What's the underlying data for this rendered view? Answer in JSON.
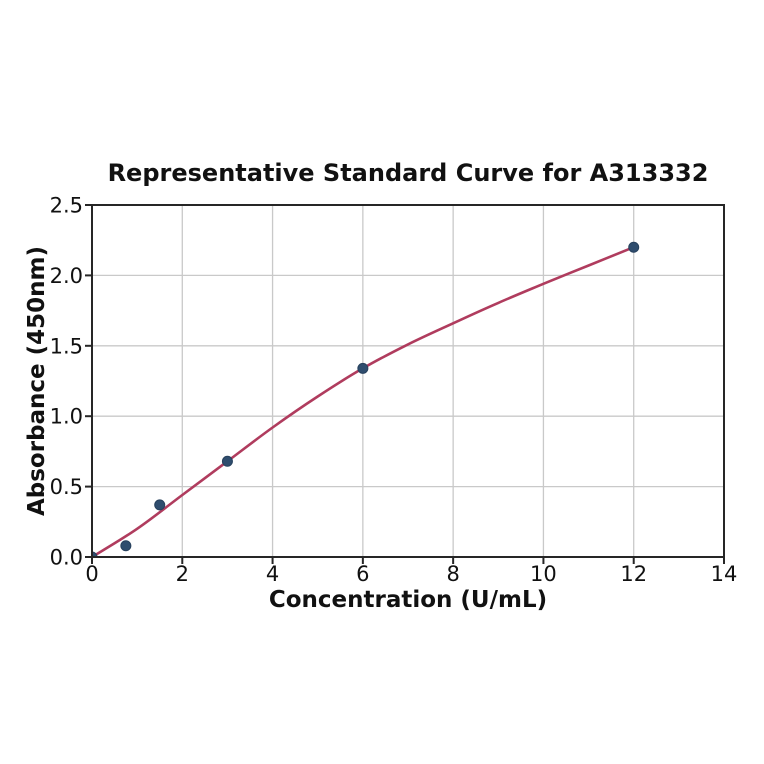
{
  "chart_data": {
    "type": "scatter",
    "title": "Representative Standard Curve for A313332",
    "xlabel": "Concentration (U/mL)",
    "ylabel": "Absorbance (450nm)",
    "xlim": [
      0,
      14
    ],
    "ylim": [
      0,
      2.5
    ],
    "grid": true,
    "legend": "none",
    "xticks": [
      0,
      2,
      4,
      6,
      8,
      10,
      12,
      14
    ],
    "xtick_labels": [
      "0",
      "2",
      "4",
      "6",
      "8",
      "10",
      "12",
      "14"
    ],
    "yticks": [
      0,
      0.5,
      1.0,
      1.5,
      2.0,
      2.5
    ],
    "ytick_labels": [
      "0.0",
      "0.5",
      "1.0",
      "1.5",
      "2.0",
      "2.5"
    ],
    "points": {
      "name": "standards",
      "x": [
        0,
        0.75,
        1.5,
        3,
        6,
        12
      ],
      "y": [
        0.0,
        0.08,
        0.37,
        0.68,
        1.34,
        2.2
      ]
    },
    "fit_curve": {
      "name": "fitted-standard-curve",
      "x": [
        0,
        1,
        2,
        3,
        4,
        5,
        6,
        7,
        8,
        9,
        10,
        11,
        12
      ],
      "y": [
        0,
        0.2,
        0.44,
        0.68,
        0.92,
        1.14,
        1.34,
        1.51,
        1.66,
        1.805,
        1.94,
        2.07,
        2.2
      ]
    },
    "colors": {
      "curve": "#b03c5e",
      "marker_fill": "#2f4d6e",
      "marker_edge": "#27415d",
      "grid": "#c9c9c9",
      "spine": "#262626",
      "tick": "#262626",
      "background": "#ffffff"
    }
  }
}
